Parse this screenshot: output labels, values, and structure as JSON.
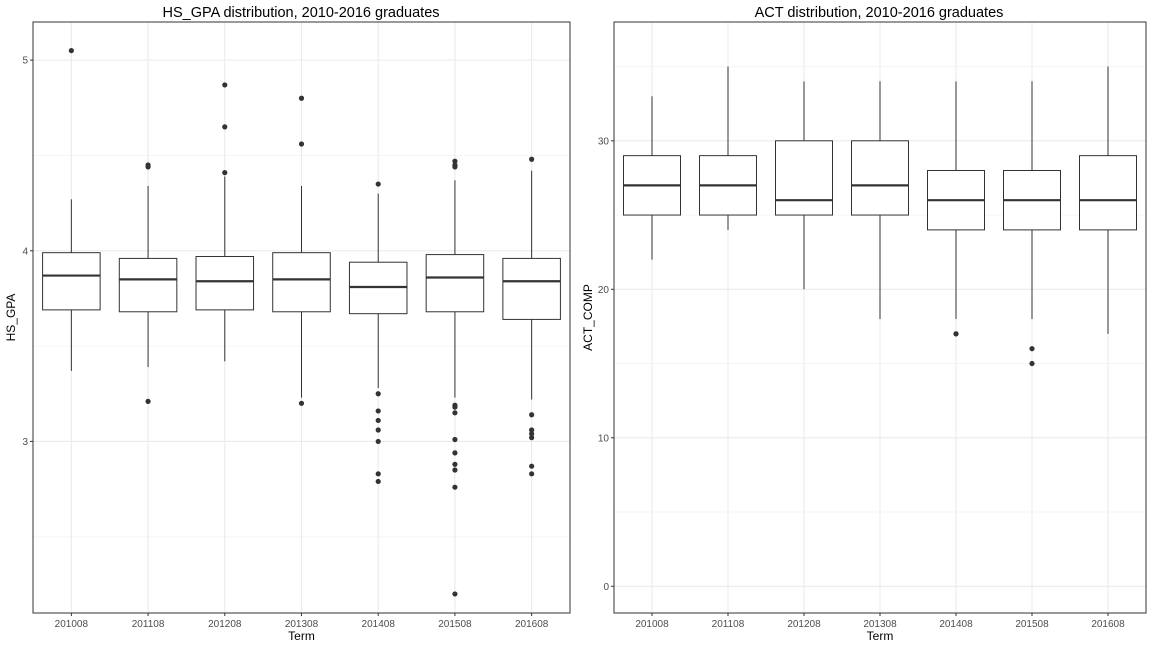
{
  "chart_data": [
    {
      "type": "boxplot",
      "title": "HS_GPA distribution, 2010-2016 graduates",
      "xlabel": "Term",
      "ylabel": "HS_GPA",
      "ylim": [
        2.1,
        5.2
      ],
      "yticks": [
        3,
        4,
        5
      ],
      "grid": true,
      "categories": [
        "201008",
        "201108",
        "201208",
        "201308",
        "201408",
        "201508",
        "201608"
      ],
      "boxes": [
        {
          "min": 3.37,
          "q1": 3.69,
          "median": 3.87,
          "q3": 3.99,
          "max": 4.27,
          "outliers": [
            5.05
          ]
        },
        {
          "min": 3.39,
          "q1": 3.68,
          "median": 3.85,
          "q3": 3.96,
          "max": 4.34,
          "outliers": [
            4.45,
            4.44,
            3.21
          ]
        },
        {
          "min": 3.42,
          "q1": 3.69,
          "median": 3.84,
          "q3": 3.97,
          "max": 4.39,
          "outliers": [
            4.87,
            4.65,
            4.41
          ]
        },
        {
          "min": 3.23,
          "q1": 3.68,
          "median": 3.85,
          "q3": 3.99,
          "max": 4.34,
          "outliers": [
            4.8,
            4.56,
            3.2
          ]
        },
        {
          "min": 3.28,
          "q1": 3.67,
          "median": 3.81,
          "q3": 3.94,
          "max": 4.3,
          "outliers": [
            4.35,
            3.25,
            3.16,
            3.11,
            3.06,
            3.0,
            2.83,
            2.79
          ]
        },
        {
          "min": 3.23,
          "q1": 3.68,
          "median": 3.86,
          "q3": 3.98,
          "max": 4.37,
          "outliers": [
            4.47,
            4.45,
            4.44,
            3.19,
            3.18,
            3.15,
            3.01,
            2.94,
            2.88,
            2.85,
            2.76,
            2.2
          ]
        },
        {
          "min": 3.22,
          "q1": 3.64,
          "median": 3.84,
          "q3": 3.96,
          "max": 4.42,
          "outliers": [
            4.48,
            3.14,
            3.06,
            3.04,
            3.02,
            2.87,
            2.83
          ]
        }
      ]
    },
    {
      "type": "boxplot",
      "title": "ACT distribution, 2010-2016 graduates",
      "xlabel": "Term",
      "ylabel": "ACT_COMP",
      "ylim": [
        -1.8,
        38
      ],
      "yticks": [
        0,
        10,
        20,
        30
      ],
      "grid": true,
      "categories": [
        "201008",
        "201108",
        "201208",
        "201308",
        "201408",
        "201508",
        "201608"
      ],
      "boxes": [
        {
          "min": 22,
          "q1": 25,
          "median": 27,
          "q3": 29,
          "max": 33,
          "outliers": []
        },
        {
          "min": 24,
          "q1": 25,
          "median": 27,
          "q3": 29,
          "max": 35,
          "outliers": []
        },
        {
          "min": 20,
          "q1": 25,
          "median": 26,
          "q3": 30,
          "max": 34,
          "outliers": []
        },
        {
          "min": 18,
          "q1": 25,
          "median": 27,
          "q3": 30,
          "max": 34,
          "outliers": []
        },
        {
          "min": 18,
          "q1": 24,
          "median": 26,
          "q3": 28,
          "max": 34,
          "outliers": [
            17,
            17
          ]
        },
        {
          "min": 18,
          "q1": 24,
          "median": 26,
          "q3": 28,
          "max": 34,
          "outliers": [
            16,
            15
          ]
        },
        {
          "min": 17,
          "q1": 24,
          "median": 26,
          "q3": 29,
          "max": 35,
          "outliers": []
        }
      ]
    }
  ],
  "colors": {
    "panel_border": "#333333",
    "grid_major": "#ebebeb",
    "grid_minor": "#f5f5f5",
    "box_stroke": "#333333",
    "box_fill": "#ffffff",
    "outlier": "#333333",
    "text": "#000000",
    "tick_text": "#4d4d4d"
  }
}
